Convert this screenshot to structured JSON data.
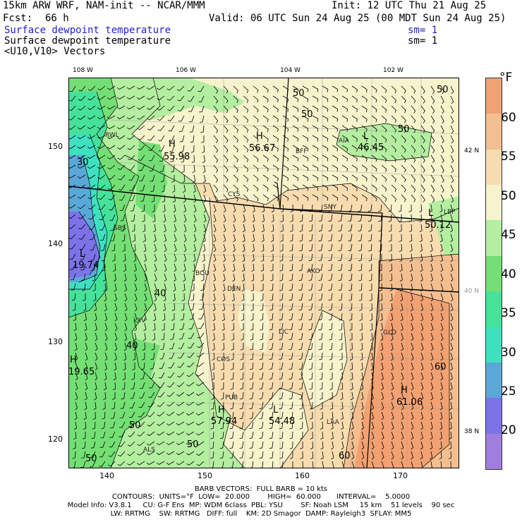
{
  "header": {
    "model": "15km ARW WRF, NAM-init -- NCAR/MMM",
    "fcst_label": "Fcst:",
    "fcst_value": "66 h",
    "init": "Init: 12 UTC Thu 21 Aug 25",
    "valid": "Valid: 06 UTC Sun 24 Aug 25 (00 MDT Sun 24 Aug 25)",
    "field1": "Surface dewpoint temperature",
    "field1_sm": "sm= 1",
    "field2": "Surface dewpoint temperature",
    "field2_sm": "sm= 1",
    "field3": "<U10,V10> Vectors",
    "field1_color": "#2222cc"
  },
  "map": {
    "lon_labels": [
      "108 W",
      "106 W",
      "104 W",
      "102 W"
    ],
    "lat_labels": [
      "42 N",
      "40 N",
      "38 N"
    ],
    "x_ticks": [
      "140",
      "150",
      "160",
      "170"
    ],
    "y_ticks": [
      "150",
      "140",
      "130",
      "120"
    ],
    "highs_lows": [
      {
        "kind": "H",
        "value": "55.98"
      },
      {
        "kind": "H",
        "value": "56.67"
      },
      {
        "kind": "L",
        "value": "46.45"
      },
      {
        "kind": "L",
        "value": "19.74"
      },
      {
        "kind": "H",
        "value": "19.65"
      },
      {
        "kind": "H",
        "value": "57.94"
      },
      {
        "kind": "L",
        "value": "54.48"
      },
      {
        "kind": "H",
        "value": "61.06"
      },
      {
        "kind": "L",
        "value": "50.12"
      }
    ],
    "contour_labels": [
      "50",
      "50",
      "50",
      "50",
      "30",
      "40",
      "40",
      "50",
      "50",
      "50",
      "60",
      "60"
    ],
    "stations": [
      "RWL",
      "BFF",
      "AIA",
      "CYS",
      "SNY",
      "LBF",
      "SBS",
      "BOU",
      "AKO",
      "DEN",
      "LXV",
      "LIC",
      "GLD",
      "COS",
      "PUB",
      "LAA",
      "ALS"
    ],
    "colors": {
      "c15": "#a07ee0",
      "c20": "#7c73e8",
      "c25": "#5aa8d8",
      "c30": "#3fe0c0",
      "c35": "#46e29a",
      "c40": "#74df74",
      "c45": "#b4eea0",
      "c50": "#f7f3cc",
      "c55": "#f7dcb0",
      "c60": "#f4bf90",
      "c65": "#f2a172"
    }
  },
  "colorbar": {
    "unit": "°F",
    "labels": [
      "60",
      "55",
      "50",
      "45",
      "40",
      "35",
      "30",
      "25",
      "20"
    ],
    "colors": [
      "#f2a172",
      "#f4bf90",
      "#f7dcb0",
      "#f7f3cc",
      "#b4eea0",
      "#74df74",
      "#46e29a",
      "#3fe0c0",
      "#5aa8d8",
      "#7c73e8",
      "#a07ee0"
    ]
  },
  "footer": {
    "line1": "BARB VECTORS:  FULL BARB = 10 kts",
    "line2": "CONTOURS:  UNITS=°F  LOW=  20.000        HIGH=  60.000       INTERVAL=    5.0000",
    "line3": "Model Info: V3.8.1     CU: G-F Ens  MP: WDM 6class  PBL: YSU        SF: Noah LSM     15 km    51 levels    90 sec",
    "line4": "LW: RRTMG    SW: RRTMG   DIFF: full    KM: 2D Smagor  DAMP: Rayleigh3  SFLAY: MM5"
  }
}
